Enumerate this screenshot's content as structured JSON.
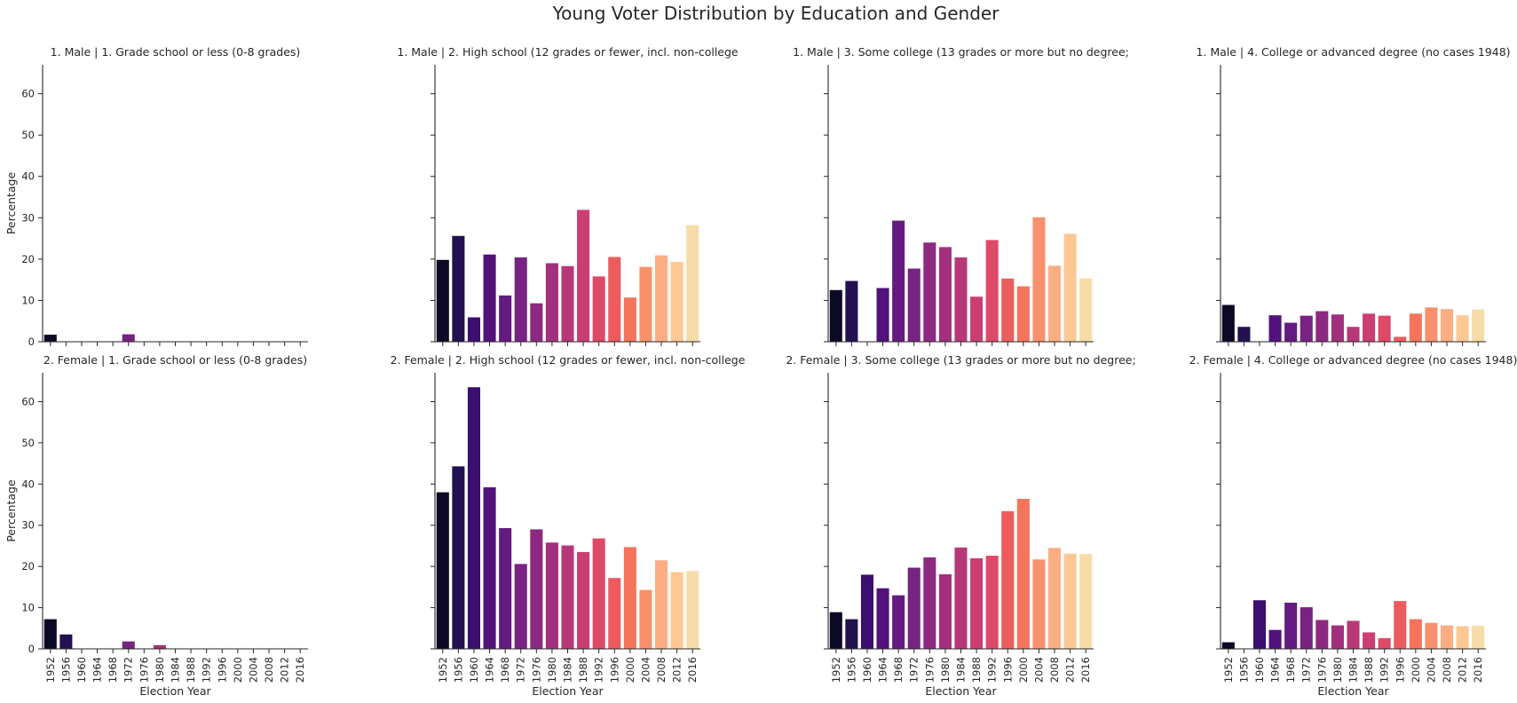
{
  "chart_data": {
    "type": "bar",
    "title": "Young Voter Distribution by Education and Gender",
    "categories": [
      "1952",
      "1956",
      "1960",
      "1964",
      "1968",
      "1972",
      "1976",
      "1980",
      "1984",
      "1988",
      "1992",
      "1996",
      "2000",
      "2004",
      "2008",
      "2012",
      "2016"
    ],
    "xlabel": "Election Year",
    "ylabel": "Percentage",
    "ylim": [
      0,
      67
    ],
    "yticks": [
      0,
      10,
      20,
      30,
      40,
      50,
      60
    ],
    "grid": false,
    "colors": [
      "#0b0924",
      "#221150",
      "#3b0f70",
      "#51127c",
      "#641a80",
      "#782281",
      "#8c2981",
      "#a1307e",
      "#b73779",
      "#cb3e72",
      "#de4968",
      "#ec5b5e",
      "#f4745c",
      "#f8916b",
      "#fcad82",
      "#fdc894",
      "#f6dca8"
    ],
    "panels": [
      {
        "title": "1. Male | 1. Grade school or less (0-8 grades)",
        "values": [
          1.7,
          0,
          0,
          0,
          0,
          1.8,
          0,
          0,
          0,
          0,
          0,
          0,
          0,
          0,
          0,
          0,
          0
        ]
      },
      {
        "title": "1. Male | 2. High school (12 grades or fewer, incl. non-college",
        "values": [
          19.8,
          25.6,
          5.9,
          21.1,
          11.2,
          20.4,
          9.3,
          19.0,
          18.3,
          31.9,
          15.8,
          20.5,
          10.7,
          18.1,
          20.9,
          19.3,
          28.2
        ]
      },
      {
        "title": "1. Male | 3. Some college (13 grades or more but no degree;",
        "values": [
          12.5,
          14.7,
          0,
          13.0,
          29.3,
          17.7,
          24.0,
          22.9,
          20.4,
          10.9,
          24.6,
          15.3,
          13.4,
          30.1,
          18.4,
          26.1,
          15.3
        ]
      },
      {
        "title": "1. Male | 4. College or advanced degree (no cases 1948)",
        "values": [
          8.9,
          3.6,
          0,
          6.4,
          4.6,
          6.3,
          7.4,
          6.6,
          3.6,
          6.8,
          6.3,
          1.2,
          6.8,
          8.3,
          7.9,
          6.4,
          7.8
        ]
      },
      {
        "title": "2. Female | 1. Grade school or less (0-8 grades)",
        "values": [
          7.2,
          3.5,
          0,
          0,
          0,
          1.8,
          0,
          0.9,
          0,
          0,
          0,
          0,
          0,
          0,
          0,
          0,
          0
        ]
      },
      {
        "title": "2. Female | 2. High school (12 grades or fewer, incl. non-college",
        "values": [
          38.0,
          44.3,
          63.5,
          39.2,
          29.3,
          20.6,
          29.0,
          25.8,
          25.1,
          23.5,
          26.8,
          17.2,
          24.7,
          14.3,
          21.5,
          18.6,
          18.9
        ]
      },
      {
        "title": "2. Female | 3. Some college (13 grades or more but no degree;",
        "values": [
          8.9,
          7.2,
          18.0,
          14.7,
          13.0,
          19.7,
          22.2,
          18.1,
          24.6,
          22.0,
          22.6,
          33.4,
          36.4,
          21.7,
          24.5,
          23.1,
          23.0
        ]
      },
      {
        "title": "2. Female | 4. College or advanced degree (no cases 1948)",
        "values": [
          1.6,
          0,
          11.8,
          4.6,
          11.2,
          10.1,
          7.0,
          5.7,
          6.8,
          4.0,
          2.6,
          11.6,
          7.2,
          6.3,
          5.7,
          5.5,
          5.6
        ]
      }
    ]
  }
}
